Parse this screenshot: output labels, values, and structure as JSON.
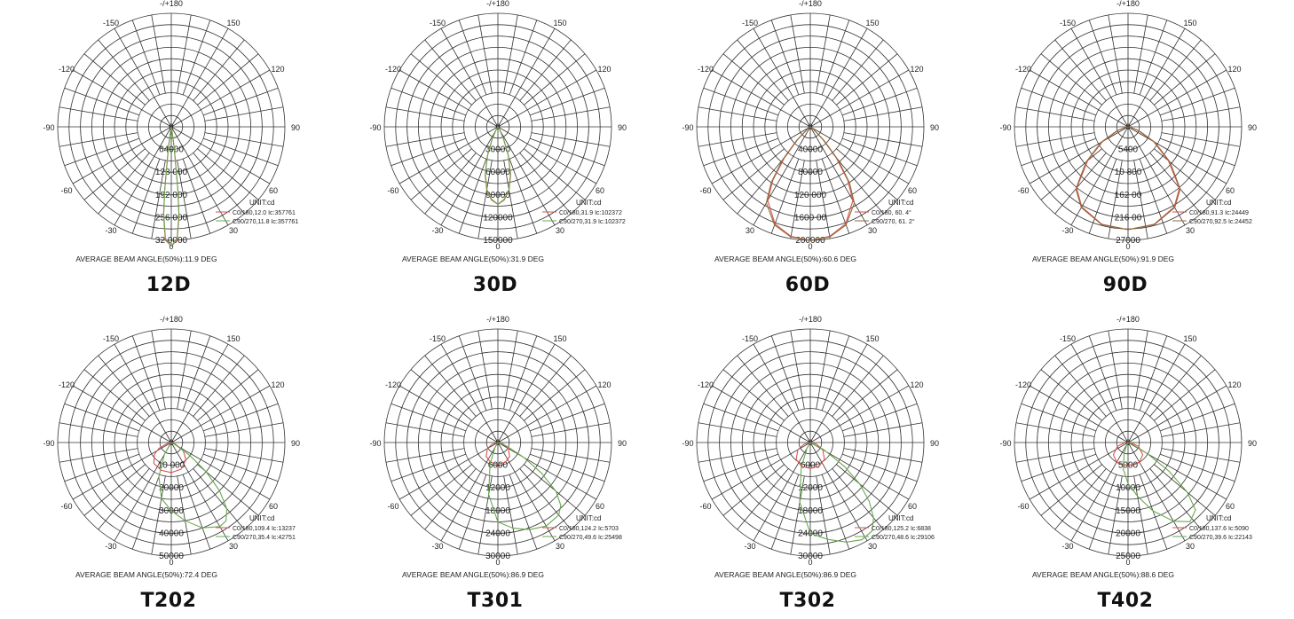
{
  "chart_data": [
    {
      "type": "polar",
      "caption": "12D",
      "angle_labels": {
        "top": "-/+180",
        "tl": "-150",
        "tr": "150",
        "ul": "-120",
        "ur": "120",
        "l": "-90",
        "r": "90",
        "ll": "-60",
        "lr": "60",
        "bl": "-30",
        "br": "30",
        "bottom": "0"
      },
      "radial_ticks": [
        "64000",
        "128 000",
        "192 000",
        "256 000",
        "32 0000"
      ],
      "radial_max": 320000,
      "unit": "UNIT:cd",
      "legend": [
        "C0/180,12.0 Ic:357761",
        "C90/270,11.8 Ic:357761"
      ],
      "beam_angle_text": "AVERAGE BEAM ANGLE(50%):11.9 DEG",
      "series": [
        {
          "values": [
            [
              0,
              357761
            ],
            [
              3,
              320000
            ],
            [
              5,
              250000
            ],
            [
              6,
              180000
            ],
            [
              8,
              60000
            ],
            [
              10,
              8000
            ],
            [
              20,
              0
            ]
          ],
          "color": "#d9534f"
        },
        {
          "values": [
            [
              0,
              357761
            ],
            [
              3,
              315000
            ],
            [
              5,
              245000
            ],
            [
              6,
              175000
            ],
            [
              8,
              55000
            ],
            [
              10,
              7000
            ],
            [
              20,
              0
            ]
          ],
          "color": "#6aa84f"
        }
      ]
    },
    {
      "type": "polar",
      "caption": "30D",
      "angle_labels": {
        "top": "-/+180",
        "tl": "-150",
        "tr": "150",
        "ul": "-120",
        "ur": "120",
        "l": "-90",
        "r": "90",
        "ll": "-60",
        "lr": "60",
        "bl": "-30",
        "br": "30",
        "bottom": "0"
      },
      "radial_ticks": [
        "30000",
        "60000",
        "90000",
        "120000",
        "150000"
      ],
      "radial_max": 150000,
      "unit": "UNIT:cd",
      "legend": [
        "C0/180,31.9 Ic:102372",
        "C90/270,31.9 Ic:102372"
      ],
      "beam_angle_text": "AVERAGE BEAM ANGLE(50%):31.9 DEG",
      "series": [
        {
          "values": [
            [
              0,
              102372
            ],
            [
              5,
              97000
            ],
            [
              10,
              85000
            ],
            [
              15,
              65000
            ],
            [
              20,
              40000
            ],
            [
              25,
              18000
            ],
            [
              30,
              6000
            ],
            [
              40,
              0
            ]
          ],
          "color": "#d9534f"
        },
        {
          "values": [
            [
              0,
              102372
            ],
            [
              5,
              96000
            ],
            [
              10,
              84000
            ],
            [
              15,
              64000
            ],
            [
              20,
              39000
            ],
            [
              25,
              17000
            ],
            [
              30,
              5000
            ],
            [
              40,
              0
            ]
          ],
          "color": "#6aa84f"
        }
      ]
    },
    {
      "type": "polar",
      "caption": "60D",
      "angle_labels": {
        "top": "-/+180",
        "tl": "-150",
        "tr": "150",
        "ul": "-120",
        "ur": "120",
        "l": "-90",
        "r": "90",
        "ll": "-60",
        "lr": "60",
        "bl": "30",
        "br": "30",
        "bottom": "0"
      },
      "radial_ticks": [
        "40000",
        "80000",
        "120 000",
        "1600 00",
        "200000"
      ],
      "radial_max": 200000,
      "unit": "UNIT:cd",
      "legend": [
        "C0/180,  60. 4°",
        "C90/270,  61.  2°"
      ],
      "beam_angle_text": "AVERAGE BEAM ANGLE(50%):60.6 DEG",
      "series": [
        {
          "values": [
            [
              0,
              200000
            ],
            [
              10,
              196000
            ],
            [
              20,
              182000
            ],
            [
              30,
              150000
            ],
            [
              35,
              115000
            ],
            [
              40,
              70000
            ],
            [
              45,
              30000
            ],
            [
              55,
              4000
            ],
            [
              70,
              0
            ]
          ],
          "color": "#d9534f"
        },
        {
          "values": [
            [
              0,
              200000
            ],
            [
              10,
              197000
            ],
            [
              20,
              184000
            ],
            [
              30,
              155000
            ],
            [
              35,
              120000
            ],
            [
              40,
              76000
            ],
            [
              45,
              34000
            ],
            [
              55,
              5000
            ],
            [
              70,
              0
            ]
          ],
          "color": "#8a6d3b"
        }
      ]
    },
    {
      "type": "polar",
      "caption": "90D",
      "angle_labels": {
        "top": "-/+180",
        "tl": "-150",
        "tr": "150",
        "ul": "-120",
        "ur": "120",
        "l": "-90",
        "r": "90",
        "ll": "-60",
        "lr": "60",
        "bl": "-30",
        "br": "30",
        "bottom": "0"
      },
      "radial_ticks": [
        "5400",
        "10 800",
        "162 00",
        "216 00",
        "27000"
      ],
      "radial_max": 27000,
      "unit": "UNIT:cd",
      "legend": [
        "C0/180,91.3 Ic:24449",
        "C90/270,92.5 Ic:24452"
      ],
      "beam_angle_text": "AVERAGE BEAM ANGLE(50%):91.9 DEG",
      "series": [
        {
          "values": [
            [
              0,
              24449
            ],
            [
              15,
              24000
            ],
            [
              30,
              22000
            ],
            [
              40,
              19000
            ],
            [
              45,
              15000
            ],
            [
              50,
              12500
            ],
            [
              60,
              7000
            ],
            [
              70,
              2500
            ],
            [
              80,
              500
            ],
            [
              90,
              0
            ]
          ],
          "color": "#d9534f"
        },
        {
          "values": [
            [
              0,
              24452
            ],
            [
              15,
              24100
            ],
            [
              30,
              22200
            ],
            [
              40,
              19300
            ],
            [
              45,
              15500
            ],
            [
              50,
              13000
            ],
            [
              60,
              7400
            ],
            [
              70,
              2800
            ],
            [
              80,
              600
            ],
            [
              90,
              0
            ]
          ],
          "color": "#8a6d3b"
        }
      ]
    },
    {
      "type": "polar",
      "caption": "T202",
      "angle_labels": {
        "top": "-/+180",
        "tl": "-150",
        "tr": "150",
        "ul": "-120",
        "ur": "120",
        "l": "-90",
        "r": "90",
        "ll": "-60",
        "lr": "60",
        "bl": "-30",
        "br": "30",
        "bottom": "0"
      },
      "radial_ticks": [
        "10 000",
        "20000",
        "30000",
        "40000",
        "50000"
      ],
      "radial_max": 50000,
      "unit": "UNIT:cd",
      "legend": [
        "C0/180,109.4 Ic:13237",
        "C90/270,35.4 Ic:42751"
      ],
      "beam_angle_text": "AVERAGE BEAM ANGLE(50%):72.4 DEG",
      "series": [
        {
          "values": [
            [
              0,
              13237
            ],
            [
              -20,
              13000
            ],
            [
              -40,
              12000
            ],
            [
              -55,
              9000
            ],
            [
              -65,
              6000
            ],
            [
              -80,
              1500
            ],
            [
              20,
              12500
            ],
            [
              40,
              10000
            ],
            [
              55,
              6500
            ],
            [
              70,
              2000
            ],
            [
              85,
              0
            ]
          ],
          "color": "#d9534f"
        },
        {
          "values": [
            [
              0,
              30000
            ],
            [
              -10,
              25000
            ],
            [
              -20,
              16000
            ],
            [
              -30,
              6000
            ],
            [
              -40,
              1000
            ],
            [
              10,
              35000
            ],
            [
              20,
              40000
            ],
            [
              30,
              42751
            ],
            [
              35,
              42000
            ],
            [
              40,
              38000
            ],
            [
              45,
              30000
            ],
            [
              50,
              20000
            ],
            [
              55,
              10000
            ],
            [
              62,
              2000
            ],
            [
              70,
              0
            ]
          ],
          "color": "#6aa84f"
        }
      ]
    },
    {
      "type": "polar",
      "caption": "T301",
      "angle_labels": {
        "top": "-/+180",
        "tl": "-150",
        "tr": "150",
        "ul": "-120",
        "ur": "120",
        "l": "-90",
        "r": "90",
        "ll": "-60",
        "lr": "60",
        "bl": "-30",
        "br": "30",
        "bottom": "0"
      },
      "radial_ticks": [
        "6000",
        "12000",
        "18000",
        "24000",
        "30000"
      ],
      "radial_max": 30000,
      "unit": "UNIT:cd",
      "legend": [
        "C0/180,124.2 Ic:5703",
        "C90/270,49.6 Ic:25498"
      ],
      "beam_angle_text": "AVERAGE BEAM ANGLE(50%):86.9 DEG",
      "series": [
        {
          "values": [
            [
              0,
              5703
            ],
            [
              -20,
              5600
            ],
            [
              -40,
              4800
            ],
            [
              -60,
              3200
            ],
            [
              -75,
              1500
            ],
            [
              20,
              5600
            ],
            [
              40,
              4800
            ],
            [
              60,
              3200
            ],
            [
              75,
              1500
            ],
            [
              90,
              0
            ]
          ],
          "color": "#d9534f"
        },
        {
          "values": [
            [
              0,
              21000
            ],
            [
              -10,
              14000
            ],
            [
              -20,
              6000
            ],
            [
              -30,
              1500
            ],
            [
              10,
              23000
            ],
            [
              20,
              24500
            ],
            [
              30,
              25498
            ],
            [
              40,
              25000
            ],
            [
              45,
              23500
            ],
            [
              50,
              20000
            ],
            [
              55,
              14000
            ],
            [
              60,
              8000
            ],
            [
              68,
              2500
            ],
            [
              75,
              0
            ]
          ],
          "color": "#6aa84f"
        }
      ]
    },
    {
      "type": "polar",
      "caption": "T302",
      "angle_labels": {
        "top": "-/+180",
        "tl": "-150",
        "tr": "150",
        "ul": "-120",
        "ur": "120",
        "l": "-90",
        "r": "90",
        "ll": "-60",
        "lr": "60",
        "bl": "-30",
        "br": "30",
        "bottom": "0"
      },
      "radial_ticks": [
        "6000",
        "12000",
        "18000",
        "24000",
        "30000"
      ],
      "radial_max": 30000,
      "unit": "UNIT:cd",
      "legend": [
        "C0/180,125.2 Ic:6838",
        "C90/270,48.6 Ic:29106"
      ],
      "beam_angle_text": "AVERAGE BEAM ANGLE(50%):86.9 DEG",
      "series": [
        {
          "values": [
            [
              0,
              6838
            ],
            [
              -20,
              6700
            ],
            [
              -40,
              5800
            ],
            [
              -60,
              3800
            ],
            [
              -75,
              1700
            ],
            [
              20,
              6700
            ],
            [
              40,
              5800
            ],
            [
              60,
              3800
            ],
            [
              75,
              1700
            ],
            [
              90,
              0
            ]
          ],
          "color": "#d9534f"
        },
        {
          "values": [
            [
              0,
              24000
            ],
            [
              -10,
              16000
            ],
            [
              -20,
              7000
            ],
            [
              -30,
              1800
            ],
            [
              10,
              26000
            ],
            [
              20,
              28000
            ],
            [
              28,
              29106
            ],
            [
              35,
              28500
            ],
            [
              40,
              26000
            ],
            [
              45,
              22000
            ],
            [
              50,
              17000
            ],
            [
              55,
              11000
            ],
            [
              62,
              4000
            ],
            [
              70,
              0
            ]
          ],
          "color": "#6aa84f"
        }
      ]
    },
    {
      "type": "polar",
      "caption": "T402",
      "angle_labels": {
        "top": "-/+180",
        "tl": "-150",
        "tr": "150",
        "ul": "-120",
        "ur": "120",
        "l": "-90",
        "r": "90",
        "ll": "-60",
        "lr": "60",
        "bl": "-30",
        "br": "30",
        "bottom": "0"
      },
      "radial_ticks": [
        "5000",
        "10000",
        "15000",
        "20000",
        "25000"
      ],
      "radial_max": 25000,
      "unit": "UNIT:cd",
      "legend": [
        "C0/180,137.6 Ic:5090",
        "C90/270,39.6 Ic:22143"
      ],
      "beam_angle_text": "AVERAGE BEAM ANGLE(50%):88.6 DEG",
      "series": [
        {
          "values": [
            [
              0,
              5090
            ],
            [
              -30,
              5000
            ],
            [
              -50,
              4200
            ],
            [
              -70,
              2500
            ],
            [
              -85,
              800
            ],
            [
              30,
              5000
            ],
            [
              50,
              4200
            ],
            [
              70,
              2500
            ],
            [
              85,
              800
            ],
            [
              95,
              0
            ]
          ],
          "color": "#d9534f"
        },
        {
          "values": [
            [
              0,
              9000
            ],
            [
              -10,
              6000
            ],
            [
              -20,
              2500
            ],
            [
              -30,
              600
            ],
            [
              10,
              12000
            ],
            [
              20,
              16000
            ],
            [
              30,
              20000
            ],
            [
              38,
              22143
            ],
            [
              45,
              21000
            ],
            [
              50,
              17000
            ],
            [
              55,
              11000
            ],
            [
              60,
              5000
            ],
            [
              68,
              1000
            ],
            [
              75,
              0
            ]
          ],
          "color": "#6aa84f"
        }
      ]
    }
  ]
}
